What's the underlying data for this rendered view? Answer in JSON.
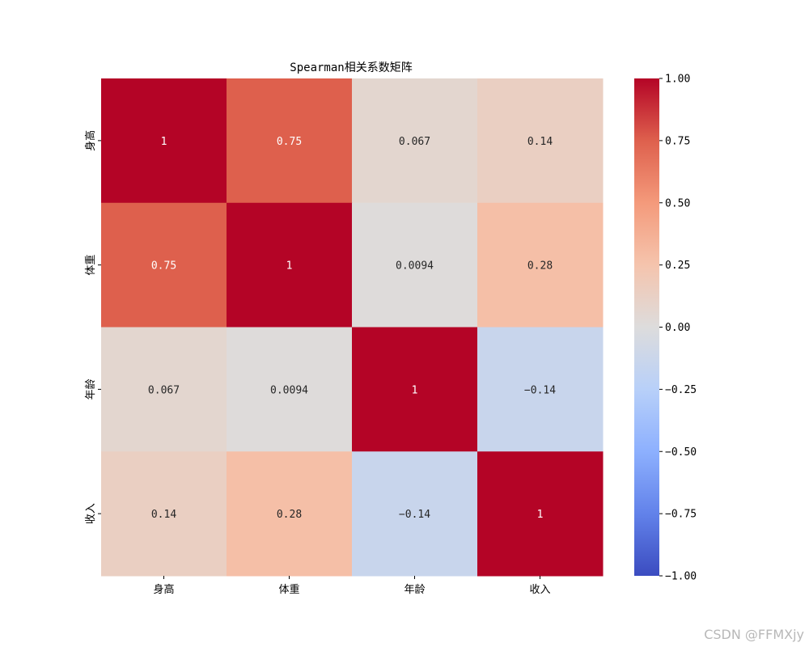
{
  "chart_data": {
    "type": "heatmap",
    "title": "Spearman相关系数矩阵",
    "row_labels": [
      "身高",
      "体重",
      "年龄",
      "收入"
    ],
    "col_labels": [
      "身高",
      "体重",
      "年龄",
      "收入"
    ],
    "values": [
      [
        1,
        0.75,
        0.067,
        0.14
      ],
      [
        0.75,
        1,
        0.0094,
        0.28
      ],
      [
        0.067,
        0.0094,
        1,
        -0.14
      ],
      [
        0.14,
        0.28,
        -0.14,
        1
      ]
    ],
    "annotations": [
      [
        "1",
        "0.75",
        "0.067",
        "0.14"
      ],
      [
        "0.75",
        "1",
        "0.0094",
        "0.28"
      ],
      [
        "0.067",
        "0.0094",
        "1",
        "−0.14"
      ],
      [
        "0.14",
        "0.28",
        "−0.14",
        "1"
      ]
    ],
    "colormap": "coolwarm",
    "vmin": -1.0,
    "vmax": 1.0,
    "colorbar_ticks": [
      "1.00",
      "0.75",
      "0.50",
      "0.25",
      "0.00",
      "−0.25",
      "−0.50",
      "−0.75",
      "−1.00"
    ],
    "colorbar_tick_values": [
      1.0,
      0.75,
      0.5,
      0.25,
      0.0,
      -0.25,
      -0.5,
      -0.75,
      -1.0
    ],
    "colors": {
      "low": "#3b4cc0",
      "mid": "#dddcdc",
      "high": "#b40426"
    }
  },
  "watermark": "CSDN @FFMXjy"
}
